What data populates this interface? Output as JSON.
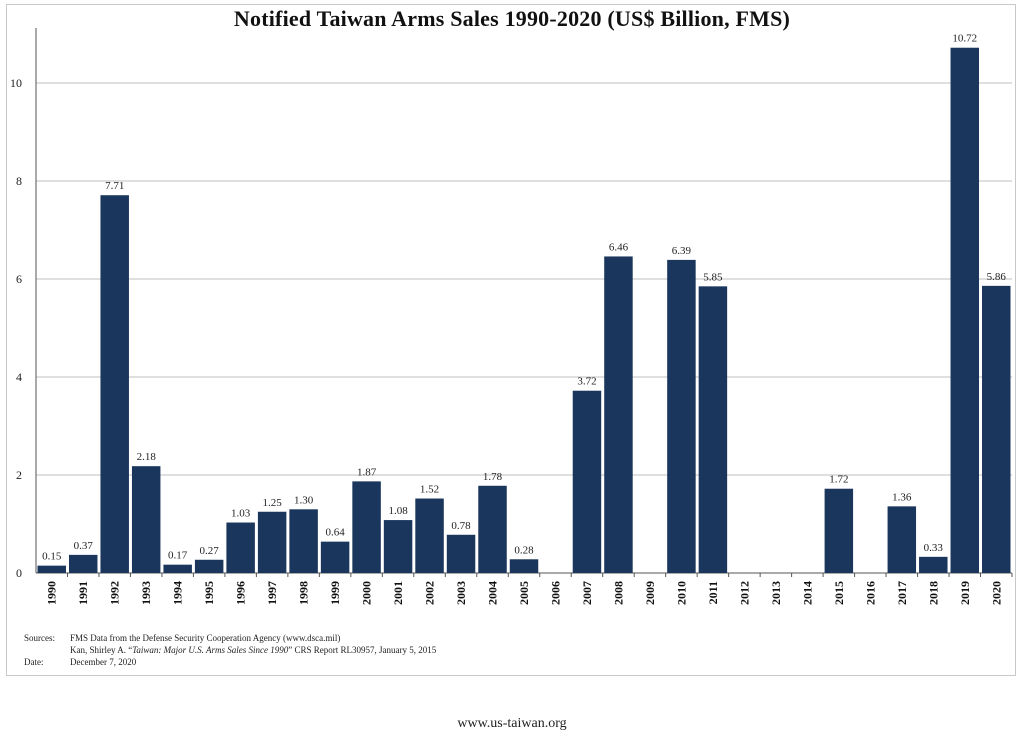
{
  "chart_data": {
    "type": "bar",
    "title": "Notified Taiwan Arms Sales 1990-2020 (US$ Billion, FMS)",
    "xlabel": "",
    "ylabel": "",
    "ylim": [
      0,
      11
    ],
    "yticks": [
      0,
      2,
      4,
      6,
      8,
      10
    ],
    "grid": true,
    "categories": [
      "1990",
      "1991",
      "1992",
      "1993",
      "1994",
      "1995",
      "1996",
      "1997",
      "1998",
      "1999",
      "2000",
      "2001",
      "2002",
      "2003",
      "2004",
      "2005",
      "2006",
      "2007",
      "2008",
      "2009",
      "2010",
      "2011",
      "2012",
      "2013",
      "2014",
      "2015",
      "2016",
      "2017",
      "2018",
      "2019",
      "2020"
    ],
    "values": [
      0.15,
      0.37,
      7.71,
      2.18,
      0.17,
      0.27,
      1.03,
      1.25,
      1.3,
      0.64,
      1.87,
      1.08,
      1.52,
      0.78,
      1.78,
      0.28,
      null,
      3.72,
      6.46,
      null,
      6.39,
      5.85,
      null,
      null,
      null,
      1.72,
      null,
      1.36,
      0.33,
      10.72,
      5.86
    ],
    "data_labels": [
      "0.15",
      "0.37",
      "7.71",
      "2.18",
      "0.17",
      "0.27",
      "1.03",
      "1.25",
      "1.30",
      "0.64",
      "1.87",
      "1.08",
      "1.52",
      "0.78",
      "1.78",
      "0.28",
      "",
      "3.72",
      "6.46",
      "",
      "6.39",
      "5.85",
      "",
      "",
      "",
      "1.72",
      "",
      "1.36",
      "0.33",
      "10.72",
      "5.86"
    ],
    "colors": {
      "bar": "#1b365d",
      "grid": "#bfbfbf"
    }
  },
  "sources": {
    "label": "Sources:",
    "line1": "FMS Data from the Defense Security Cooperation Agency (www.dsca.mil)",
    "line2_prefix": "Kan, Shirley A. “",
    "line2_italic": "Taiwan: Major U.S. Arms Sales Since 1990",
    "line2_suffix": "” CRS Report RL30957, January 5, 2015",
    "date_label": "Date:",
    "date": "December 7, 2020"
  },
  "footer": "www.us-taiwan.org"
}
